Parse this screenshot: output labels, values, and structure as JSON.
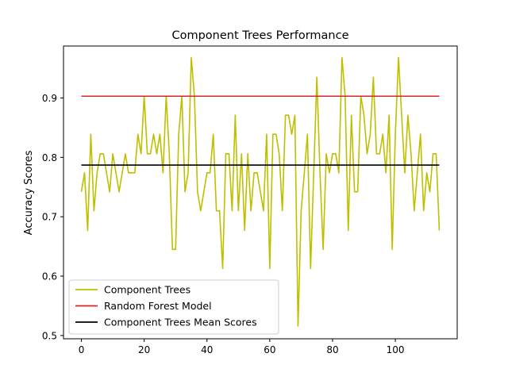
{
  "chart_data": {
    "type": "line",
    "title": "Component Trees Performance",
    "xlabel": "",
    "ylabel": "Accuracy Scores",
    "xlim": [
      -5.7,
      119.7
    ],
    "ylim": [
      0.4945,
      0.9875
    ],
    "x_ticks": [
      0,
      20,
      40,
      60,
      80,
      100
    ],
    "y_ticks": [
      0.5,
      0.6,
      0.7,
      0.8,
      0.9
    ],
    "x_tick_labels": [
      "0",
      "20",
      "40",
      "60",
      "80",
      "100"
    ],
    "y_tick_labels": [
      "0.5",
      "0.6",
      "0.7",
      "0.8",
      "0.9"
    ],
    "grid": false,
    "legend": {
      "position": "lower-left",
      "entries": [
        "Component Trees",
        "Random Forest Model",
        "Component Trees Mean Scores"
      ]
    },
    "series": [
      {
        "name": "Component Trees",
        "color": "#bfbf00",
        "x": [
          0,
          1,
          2,
          3,
          4,
          5,
          6,
          7,
          8,
          9,
          10,
          11,
          12,
          13,
          14,
          15,
          16,
          17,
          18,
          19,
          20,
          21,
          22,
          23,
          24,
          25,
          26,
          27,
          28,
          29,
          30,
          31,
          32,
          33,
          34,
          35,
          36,
          37,
          38,
          39,
          40,
          41,
          42,
          43,
          44,
          45,
          46,
          47,
          48,
          49,
          50,
          51,
          52,
          53,
          54,
          55,
          56,
          57,
          58,
          59,
          60,
          61,
          62,
          63,
          64,
          65,
          66,
          67,
          68,
          69,
          70,
          71,
          72,
          73,
          74,
          75,
          76,
          77,
          78,
          79,
          80,
          81,
          82,
          83,
          84,
          85,
          86,
          87,
          88,
          89,
          90,
          91,
          92,
          93,
          94,
          95,
          96,
          97,
          98,
          99,
          100,
          101,
          102,
          103,
          104,
          105,
          106,
          107,
          108,
          109,
          110,
          111,
          112,
          113,
          114
        ],
        "values": [
          0.742,
          0.774,
          0.677,
          0.839,
          0.71,
          0.774,
          0.806,
          0.806,
          0.774,
          0.742,
          0.806,
          0.774,
          0.742,
          0.774,
          0.806,
          0.774,
          0.774,
          0.774,
          0.839,
          0.806,
          0.903,
          0.806,
          0.806,
          0.839,
          0.806,
          0.839,
          0.774,
          0.903,
          0.806,
          0.645,
          0.645,
          0.839,
          0.903,
          0.742,
          0.774,
          0.968,
          0.903,
          0.742,
          0.71,
          0.742,
          0.774,
          0.774,
          0.839,
          0.71,
          0.71,
          0.613,
          0.806,
          0.806,
          0.71,
          0.871,
          0.71,
          0.806,
          0.677,
          0.806,
          0.71,
          0.774,
          0.774,
          0.742,
          0.71,
          0.839,
          0.613,
          0.839,
          0.839,
          0.806,
          0.71,
          0.871,
          0.871,
          0.839,
          0.871,
          0.516,
          0.71,
          0.774,
          0.839,
          0.613,
          0.774,
          0.935,
          0.774,
          0.645,
          0.806,
          0.774,
          0.806,
          0.806,
          0.774,
          0.968,
          0.903,
          0.677,
          0.871,
          0.742,
          0.742,
          0.903,
          0.871,
          0.806,
          0.839,
          0.935,
          0.806,
          0.806,
          0.839,
          0.774,
          0.871,
          0.645,
          0.839,
          0.968,
          0.871,
          0.774,
          0.871,
          0.806,
          0.71,
          0.774,
          0.839,
          0.71,
          0.774,
          0.742,
          0.806,
          0.806,
          0.677
        ]
      },
      {
        "name": "Random Forest Model",
        "color": "#d62728",
        "x": [
          0,
          114
        ],
        "values": [
          0.903,
          0.903
        ]
      },
      {
        "name": "Component Trees Mean Scores",
        "color": "#000000",
        "x": [
          0,
          114
        ],
        "values": [
          0.787,
          0.787
        ]
      }
    ]
  }
}
